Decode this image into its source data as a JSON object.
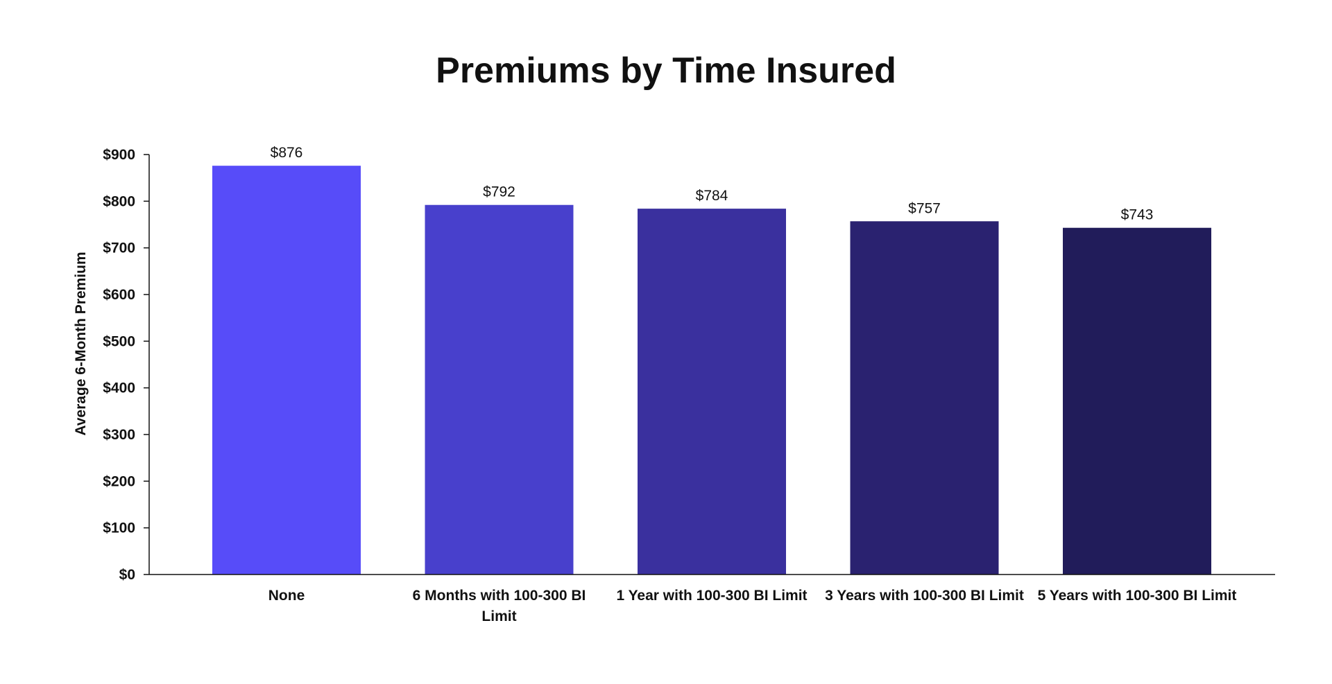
{
  "chart_data": {
    "type": "bar",
    "title": "Premiums by Time Insured",
    "xlabel": "",
    "ylabel": "Average 6-Month Premium",
    "ylim": [
      0,
      900
    ],
    "yticks": [
      0,
      100,
      200,
      300,
      400,
      500,
      600,
      700,
      800,
      900
    ],
    "ytick_labels": [
      "$0",
      "$100",
      "$200",
      "$300",
      "$400",
      "$500",
      "$600",
      "$700",
      "$800",
      "$900"
    ],
    "categories": [
      "None",
      "6 Months with 100-300 BI Limit",
      "1 Year with 100-300 BI Limit",
      "3 Years with 100-300 BI Limit",
      "5 Years with 100-300 BI Limit"
    ],
    "category_lines": [
      [
        "None"
      ],
      [
        "6 Months with 100-300 BI",
        "Limit"
      ],
      [
        "1 Year with 100-300 BI Limit"
      ],
      [
        "3 Years with 100-300 BI Limit"
      ],
      [
        "5 Years with 100-300 BI Limit"
      ]
    ],
    "values": [
      876,
      792,
      784,
      757,
      743
    ],
    "data_labels": [
      "$876",
      "$792",
      "$784",
      "$757",
      "$743"
    ],
    "colors": [
      "#574cf9",
      "#4840cc",
      "#3a309e",
      "#2a2270",
      "#211c5a"
    ],
    "grid": false,
    "legend": "none"
  }
}
